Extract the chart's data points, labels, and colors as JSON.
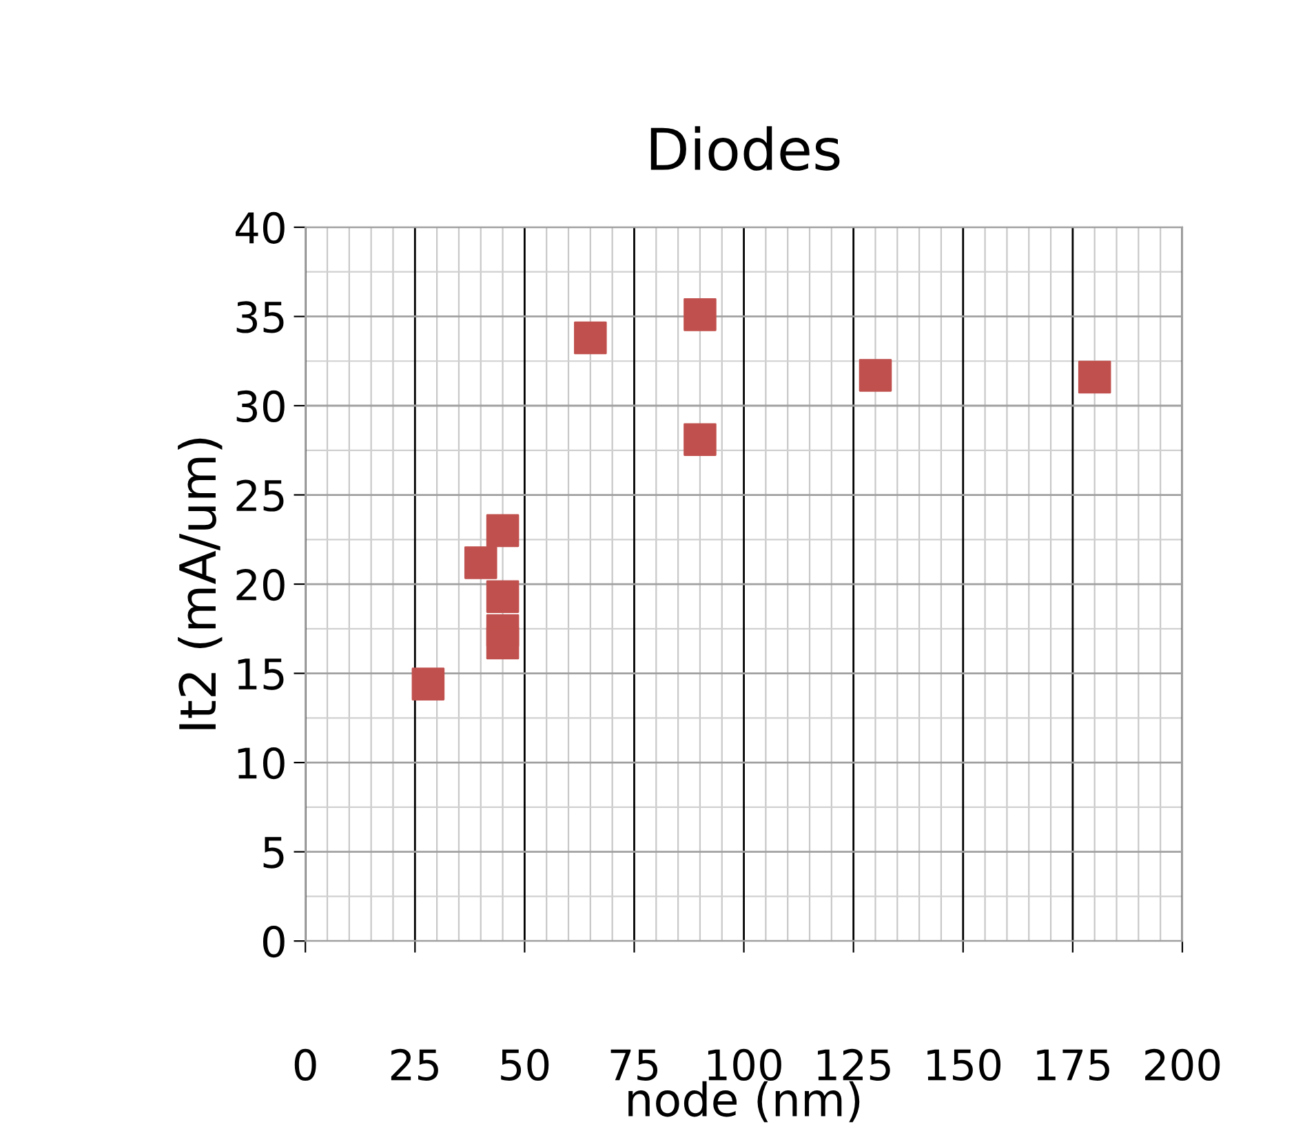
{
  "chart_data": {
    "type": "scatter",
    "title": "Diodes",
    "xlabel": "node (nm)",
    "ylabel": "It2 (mA/um)",
    "x": [
      28,
      40,
      45,
      45,
      45,
      45,
      65,
      90,
      90,
      130,
      180
    ],
    "series": [
      {
        "color": "#c0504d",
        "values": [
          14.4,
          21.2,
          23.0,
          19.3,
          17.4,
          16.7,
          33.8,
          35.1,
          28.1,
          31.7,
          31.6
        ]
      }
    ],
    "xlim": [
      0,
      200
    ],
    "xticks": [
      0,
      25,
      50,
      75,
      100,
      125,
      150,
      175,
      200
    ],
    "ylim": [
      0,
      40
    ],
    "yticks": [
      0,
      5,
      10,
      15,
      20,
      25,
      30,
      35,
      40
    ],
    "grid": true,
    "marker": "square",
    "legend": false
  }
}
